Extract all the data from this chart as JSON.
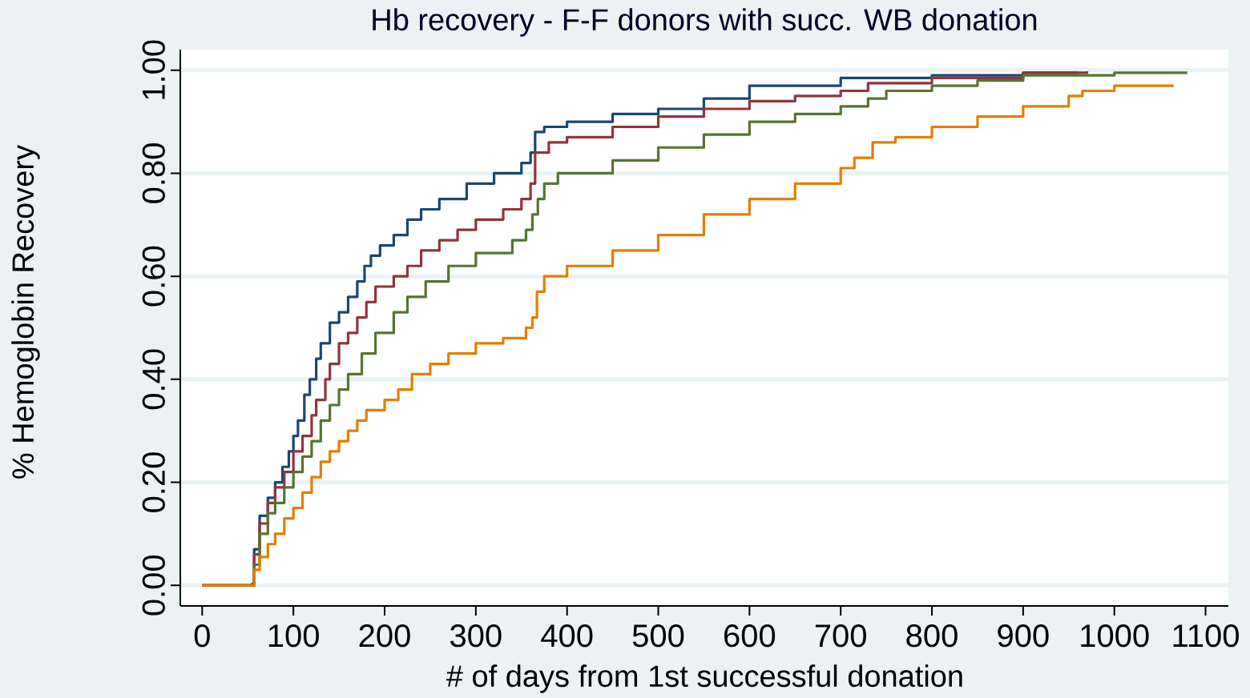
{
  "chart_data": {
    "type": "step",
    "title": "Hb recovery - F-F donors with succ. WB donation",
    "xlabel": "# of days from 1st successful donation",
    "ylabel": "% Hemoglobin Recovery",
    "xlim": [
      -24,
      1125
    ],
    "ylim": [
      -0.04,
      1.04
    ],
    "xticks": [
      0,
      100,
      200,
      300,
      400,
      500,
      600,
      700,
      800,
      900,
      1000,
      1100
    ],
    "yticks": [
      {
        "value": 0,
        "label": "0.00"
      },
      {
        "value": 0.2,
        "label": "0.20"
      },
      {
        "value": 0.4,
        "label": "0.40"
      },
      {
        "value": 0.6,
        "label": "0.60"
      },
      {
        "value": 0.8,
        "label": "0.80"
      },
      {
        "value": 1,
        "label": "1.00"
      }
    ],
    "grid": "y",
    "series": [
      {
        "color": "#1a476f",
        "x": [
          0,
          55,
          57,
          63,
          72,
          80,
          88,
          95,
          100,
          105,
          112,
          118,
          125,
          130,
          140,
          150,
          160,
          170,
          178,
          185,
          195,
          210,
          225,
          240,
          260,
          290,
          320,
          350,
          360,
          365,
          375,
          400,
          450,
          500,
          550,
          600,
          700,
          800,
          900,
          960
        ],
        "values": [
          0,
          0.003,
          0.07,
          0.135,
          0.17,
          0.2,
          0.23,
          0.26,
          0.29,
          0.32,
          0.37,
          0.4,
          0.44,
          0.47,
          0.51,
          0.53,
          0.56,
          0.59,
          0.62,
          0.64,
          0.66,
          0.68,
          0.71,
          0.73,
          0.75,
          0.78,
          0.8,
          0.82,
          0.84,
          0.88,
          0.89,
          0.9,
          0.915,
          0.925,
          0.945,
          0.97,
          0.985,
          0.99,
          0.995,
          0.997
        ]
      },
      {
        "color": "#90353b",
        "x": [
          0,
          57,
          63,
          72,
          80,
          90,
          100,
          110,
          120,
          125,
          135,
          140,
          150,
          160,
          170,
          180,
          190,
          210,
          225,
          240,
          260,
          280,
          300,
          330,
          350,
          360,
          365,
          380,
          400,
          450,
          500,
          550,
          600,
          650,
          700,
          730,
          800,
          900,
          970
        ],
        "values": [
          0,
          0.06,
          0.12,
          0.16,
          0.19,
          0.22,
          0.26,
          0.29,
          0.33,
          0.36,
          0.4,
          0.43,
          0.47,
          0.49,
          0.52,
          0.55,
          0.58,
          0.6,
          0.62,
          0.65,
          0.67,
          0.69,
          0.71,
          0.73,
          0.75,
          0.78,
          0.84,
          0.86,
          0.87,
          0.89,
          0.91,
          0.925,
          0.94,
          0.95,
          0.96,
          0.975,
          0.985,
          0.995,
          0.998
        ]
      },
      {
        "color": "#55752f",
        "x": [
          0,
          57,
          63,
          72,
          80,
          90,
          100,
          110,
          120,
          130,
          140,
          150,
          160,
          175,
          190,
          210,
          225,
          245,
          270,
          300,
          340,
          355,
          362,
          368,
          375,
          390,
          450,
          500,
          550,
          600,
          650,
          700,
          730,
          750,
          800,
          850,
          900,
          1000,
          1080
        ],
        "values": [
          0,
          0.04,
          0.1,
          0.14,
          0.16,
          0.19,
          0.22,
          0.25,
          0.28,
          0.32,
          0.35,
          0.38,
          0.41,
          0.45,
          0.49,
          0.53,
          0.56,
          0.59,
          0.62,
          0.645,
          0.67,
          0.69,
          0.72,
          0.75,
          0.78,
          0.8,
          0.825,
          0.85,
          0.875,
          0.9,
          0.915,
          0.93,
          0.945,
          0.96,
          0.97,
          0.98,
          0.99,
          0.995,
          0.995
        ]
      },
      {
        "color": "#e37e00",
        "x": [
          0,
          57,
          63,
          72,
          80,
          90,
          100,
          110,
          120,
          130,
          140,
          150,
          160,
          170,
          180,
          200,
          215,
          230,
          250,
          270,
          300,
          330,
          355,
          362,
          367,
          375,
          400,
          450,
          500,
          550,
          600,
          650,
          700,
          715,
          735,
          760,
          800,
          850,
          900,
          950,
          965,
          1000,
          1065
        ],
        "values": [
          0,
          0.03,
          0.055,
          0.08,
          0.1,
          0.13,
          0.15,
          0.18,
          0.21,
          0.24,
          0.26,
          0.28,
          0.3,
          0.32,
          0.34,
          0.36,
          0.38,
          0.41,
          0.43,
          0.45,
          0.47,
          0.48,
          0.5,
          0.52,
          0.57,
          0.6,
          0.62,
          0.65,
          0.68,
          0.72,
          0.75,
          0.78,
          0.81,
          0.83,
          0.86,
          0.87,
          0.89,
          0.91,
          0.93,
          0.95,
          0.96,
          0.97,
          0.97
        ]
      }
    ]
  }
}
